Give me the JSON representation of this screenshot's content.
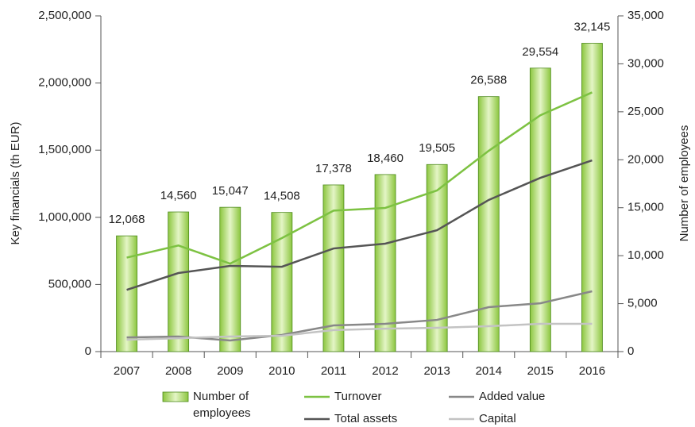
{
  "chart_data": {
    "type": "bar",
    "categories": [
      "2007",
      "2008",
      "2009",
      "2010",
      "2011",
      "2012",
      "2013",
      "2014",
      "2015",
      "2016"
    ],
    "y_label": "Key financials (th EUR)",
    "y2_label": "Number of employees",
    "ylim": [
      0,
      2500000
    ],
    "yticks": [
      0,
      {
        "value": 500000,
        "label": "500,000"
      },
      {
        "value": 1000000,
        "label": "1,000,000"
      },
      {
        "value": 1500000,
        "label": "1,500,000"
      },
      {
        "value": 2000000,
        "label": "2,000,000"
      },
      {
        "value": 2500000,
        "label": "2,500,000"
      }
    ],
    "y2lim": [
      0,
      35000
    ],
    "y2ticks": [
      0,
      {
        "value": 5000,
        "label": "5,000"
      },
      {
        "value": 10000,
        "label": "10,000"
      },
      {
        "value": 15000,
        "label": "15,000"
      },
      {
        "value": 20000,
        "label": "20,000"
      },
      {
        "value": 25000,
        "label": "25,000"
      },
      {
        "value": 30000,
        "label": "30,000"
      },
      {
        "value": 35000,
        "label": "35,000"
      }
    ],
    "series": [
      {
        "name": "Number of employees",
        "type": "bar",
        "axis": "y2",
        "color": "#8cc63f",
        "values": [
          12068,
          14560,
          15047,
          14508,
          17378,
          18460,
          19505,
          26588,
          29554,
          32145
        ],
        "value_labels": [
          "12,068",
          "14,560",
          "15,047",
          "14,508",
          "17,378",
          "18,460",
          "19,505",
          "26,588",
          "29,554",
          "32,145"
        ]
      },
      {
        "name": "Turnover",
        "type": "line",
        "color": "#7dc242",
        "values": [
          700000,
          790000,
          655000,
          845000,
          1050000,
          1070000,
          1200000,
          1495000,
          1760000,
          1930000
        ]
      },
      {
        "name": "Total assets",
        "type": "line",
        "color": "#555555",
        "values": [
          460000,
          585000,
          638000,
          632000,
          768000,
          804000,
          904000,
          1129000,
          1294000,
          1424000
        ]
      },
      {
        "name": "Added value",
        "type": "line",
        "color": "#888888",
        "values": [
          106000,
          112000,
          83000,
          124000,
          195000,
          207000,
          236000,
          331000,
          360000,
          449000
        ]
      },
      {
        "name": "Capital",
        "type": "line",
        "color": "#c3c3c3",
        "values": [
          89000,
          100000,
          112000,
          118000,
          160000,
          171000,
          177000,
          189000,
          207000,
          207000
        ]
      }
    ]
  }
}
